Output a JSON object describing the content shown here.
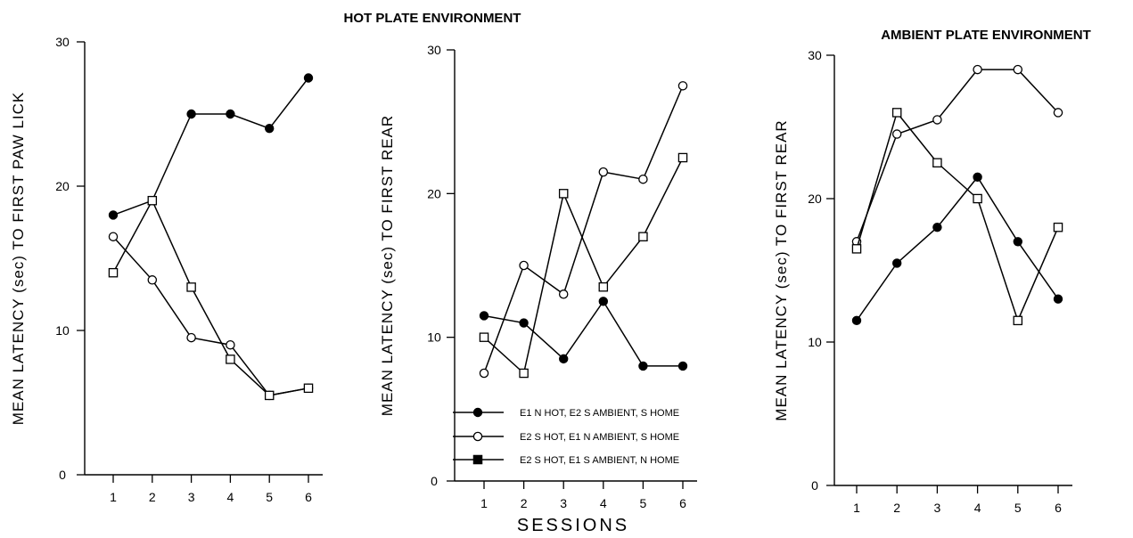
{
  "figure": {
    "title_hot": "HOT PLATE ENVIRONMENT",
    "title_ambient": "AMBIENT PLATE ENVIRONMENT",
    "xlabel": "SESSIONS"
  },
  "legend": [
    {
      "label": "E1 N HOT, E2 S AMBIENT, S HOME",
      "marker": "filled-circle"
    },
    {
      "label": "E2 S HOT, E1 N AMBIENT, S HOME",
      "marker": "open-circle"
    },
    {
      "label": "E2 S HOT, E1 S AMBIENT, N HOME",
      "marker": "filled-square"
    }
  ],
  "chart_data": [
    {
      "type": "line",
      "ylabel": "MEAN LATENCY (sec) TO FIRST PAW LICK",
      "x": [
        1,
        2,
        3,
        4,
        5,
        6
      ],
      "ylim": [
        0,
        30
      ],
      "yticks": [
        0,
        10,
        20,
        30
      ],
      "series": [
        {
          "marker": "filled-circle",
          "values": [
            18,
            19,
            25,
            25,
            24,
            27.5
          ]
        },
        {
          "marker": "open-circle",
          "values": [
            16.5,
            13.5,
            9.5,
            9,
            5.5,
            6
          ]
        },
        {
          "marker": "open-square",
          "values": [
            14,
            19,
            13,
            8,
            5.5,
            6
          ]
        }
      ]
    },
    {
      "type": "line",
      "ylabel": "MEAN LATENCY (sec) TO FIRST REAR",
      "x": [
        1,
        2,
        3,
        4,
        5,
        6
      ],
      "ylim": [
        0,
        30
      ],
      "yticks": [
        0,
        10,
        20,
        30
      ],
      "series": [
        {
          "marker": "filled-circle",
          "values": [
            11.5,
            11,
            8.5,
            12.5,
            8,
            8
          ]
        },
        {
          "marker": "open-circle",
          "values": [
            7.5,
            15,
            13,
            21.5,
            21,
            27.5
          ]
        },
        {
          "marker": "open-square",
          "values": [
            10,
            7.5,
            20,
            13.5,
            17,
            22.5
          ]
        }
      ]
    },
    {
      "type": "line",
      "ylabel": "MEAN LATENCY (sec) TO FIRST REAR",
      "x": [
        1,
        2,
        3,
        4,
        5,
        6
      ],
      "ylim": [
        0,
        30
      ],
      "yticks": [
        0,
        10,
        20,
        30
      ],
      "series": [
        {
          "marker": "filled-circle",
          "values": [
            11.5,
            15.5,
            18,
            21.5,
            17,
            13
          ]
        },
        {
          "marker": "open-circle",
          "values": [
            17,
            24.5,
            25.5,
            29,
            29,
            26
          ]
        },
        {
          "marker": "open-square",
          "values": [
            16.5,
            26,
            22.5,
            20,
            11.5,
            18
          ]
        }
      ]
    }
  ]
}
